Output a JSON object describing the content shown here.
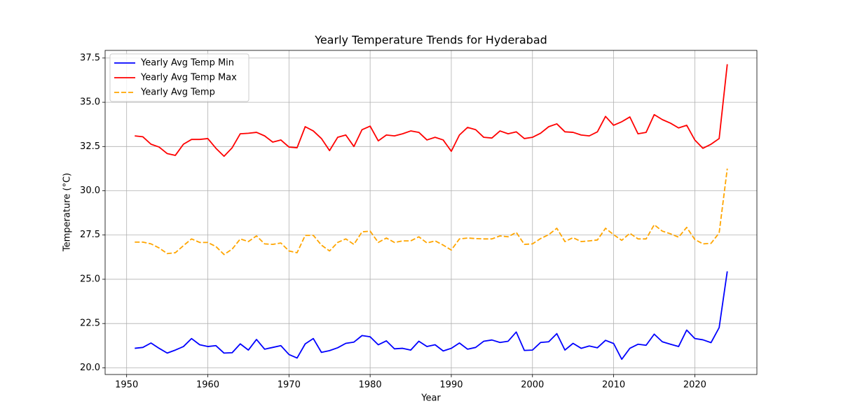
{
  "chart_data": {
    "type": "line",
    "title": "Yearly Temperature Trends for Hyderabad",
    "xlabel": "Year",
    "ylabel": "Temperature (°C)",
    "x": [
      1951,
      1952,
      1953,
      1954,
      1955,
      1956,
      1957,
      1958,
      1959,
      1960,
      1961,
      1962,
      1963,
      1964,
      1965,
      1966,
      1967,
      1968,
      1969,
      1970,
      1971,
      1972,
      1973,
      1974,
      1975,
      1976,
      1977,
      1978,
      1979,
      1980,
      1981,
      1982,
      1983,
      1984,
      1985,
      1986,
      1987,
      1988,
      1989,
      1990,
      1991,
      1992,
      1993,
      1994,
      1995,
      1996,
      1997,
      1998,
      1999,
      2000,
      2001,
      2002,
      2003,
      2004,
      2005,
      2006,
      2007,
      2008,
      2009,
      2010,
      2011,
      2012,
      2013,
      2014,
      2015,
      2016,
      2017,
      2018,
      2019,
      2020,
      2021,
      2022,
      2023,
      2024
    ],
    "series": [
      {
        "name": "Yearly Avg Temp Min",
        "color": "#0000ff",
        "linestyle": "solid",
        "values": [
          21.1,
          21.15,
          21.4,
          21.1,
          20.83,
          21.0,
          21.2,
          21.65,
          21.3,
          21.2,
          21.25,
          20.83,
          20.85,
          21.35,
          21.0,
          21.6,
          21.05,
          21.15,
          21.25,
          20.75,
          20.55,
          21.35,
          21.65,
          20.87,
          20.97,
          21.13,
          21.38,
          21.45,
          21.82,
          21.75,
          21.3,
          21.52,
          21.07,
          21.1,
          21.0,
          21.5,
          21.2,
          21.3,
          20.95,
          21.1,
          21.4,
          21.05,
          21.15,
          21.5,
          21.57,
          21.43,
          21.5,
          22.02,
          20.98,
          21.0,
          21.43,
          21.47,
          21.93,
          21.0,
          21.38,
          21.1,
          21.23,
          21.13,
          21.55,
          21.37,
          20.48,
          21.1,
          21.33,
          21.27,
          21.9,
          21.47,
          21.33,
          21.2,
          22.13,
          21.65,
          21.58,
          21.42,
          22.27,
          25.45
        ]
      },
      {
        "name": "Yearly Avg Temp Max",
        "color": "#ff0000",
        "linestyle": "solid",
        "values": [
          33.1,
          33.05,
          32.63,
          32.47,
          32.1,
          32.0,
          32.63,
          32.9,
          32.9,
          32.95,
          32.4,
          31.95,
          32.43,
          33.22,
          33.25,
          33.3,
          33.1,
          32.75,
          32.87,
          32.47,
          32.43,
          33.62,
          33.38,
          32.95,
          32.27,
          33.02,
          33.15,
          32.5,
          33.45,
          33.65,
          32.82,
          33.15,
          33.1,
          33.22,
          33.38,
          33.3,
          32.87,
          33.02,
          32.87,
          32.23,
          33.15,
          33.58,
          33.45,
          33.02,
          32.98,
          33.38,
          33.22,
          33.33,
          32.95,
          33.02,
          33.25,
          33.62,
          33.78,
          33.33,
          33.3,
          33.15,
          33.1,
          33.33,
          34.2,
          33.7,
          33.9,
          34.17,
          33.22,
          33.3,
          34.3,
          34.02,
          33.82,
          33.55,
          33.7,
          32.87,
          32.4,
          32.63,
          32.95,
          37.15
        ]
      },
      {
        "name": "Yearly Avg Temp",
        "color": "#ffa500",
        "linestyle": "dashed",
        "values": [
          27.1,
          27.1,
          27.0,
          26.77,
          26.45,
          26.5,
          26.9,
          27.28,
          27.08,
          27.08,
          26.85,
          26.4,
          26.7,
          27.28,
          27.13,
          27.45,
          27.0,
          26.97,
          27.05,
          26.6,
          26.5,
          27.48,
          27.48,
          26.93,
          26.6,
          27.08,
          27.28,
          26.97,
          27.68,
          27.72,
          27.08,
          27.33,
          27.08,
          27.17,
          27.17,
          27.4,
          27.05,
          27.17,
          26.93,
          26.65,
          27.28,
          27.33,
          27.3,
          27.28,
          27.28,
          27.45,
          27.4,
          27.65,
          26.97,
          27.0,
          27.3,
          27.52,
          27.88,
          27.13,
          27.35,
          27.13,
          27.17,
          27.22,
          27.88,
          27.52,
          27.2,
          27.6,
          27.28,
          27.28,
          28.08,
          27.72,
          27.57,
          27.38,
          27.93,
          27.25,
          27.0,
          27.03,
          27.62,
          31.25
        ]
      }
    ],
    "xlim": [
      1947.35,
      2027.65
    ],
    "xticks": [
      1950,
      1960,
      1970,
      1980,
      1990,
      2000,
      2010,
      2020
    ],
    "ylim": [
      19.62,
      37.93
    ],
    "yticks": [
      {
        "value": 20,
        "label": "20.0"
      },
      22.5,
      {
        "value": 25,
        "label": "25.0"
      },
      27.5,
      {
        "value": 30,
        "label": "30.0"
      },
      32.5,
      {
        "value": 35,
        "label": "35.0"
      },
      37.5
    ],
    "grid": true,
    "legend": "upper left"
  }
}
